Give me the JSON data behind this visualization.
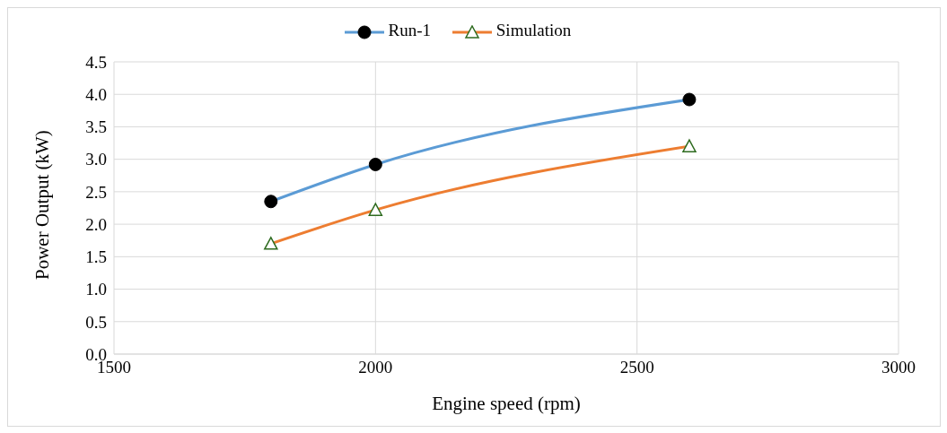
{
  "chart_data": {
    "type": "line",
    "xlabel": "Engine speed (rpm)",
    "ylabel": "Power Output (kW)",
    "x": [
      1800,
      2000,
      2600
    ],
    "series": [
      {
        "name": "Run-1",
        "color": "#5b9bd5",
        "marker": "circle",
        "values": [
          2.35,
          2.92,
          3.92
        ]
      },
      {
        "name": "Simulation",
        "color": "#ed7d31",
        "marker": "triangle",
        "values": [
          1.7,
          2.22,
          3.2
        ]
      }
    ],
    "xlim": [
      1500,
      3000
    ],
    "xticks": [
      1500,
      2000,
      2500,
      3000
    ],
    "ylim": [
      0,
      4.5
    ],
    "yticks": [
      {
        "value": 0,
        "label": "0.0"
      },
      {
        "value": 0.5,
        "label": "0.5"
      },
      {
        "value": 1,
        "label": "1.0"
      },
      {
        "value": 1.5,
        "label": "1.5"
      },
      {
        "value": 2,
        "label": "2.0"
      },
      {
        "value": 2.5,
        "label": "2.5"
      },
      {
        "value": 3,
        "label": "3.0"
      },
      {
        "value": 3.5,
        "label": "3.5"
      },
      {
        "value": 4,
        "label": "4.0"
      },
      {
        "value": 4.5,
        "label": "4.5"
      }
    ],
    "grid": true,
    "legend": "top"
  }
}
